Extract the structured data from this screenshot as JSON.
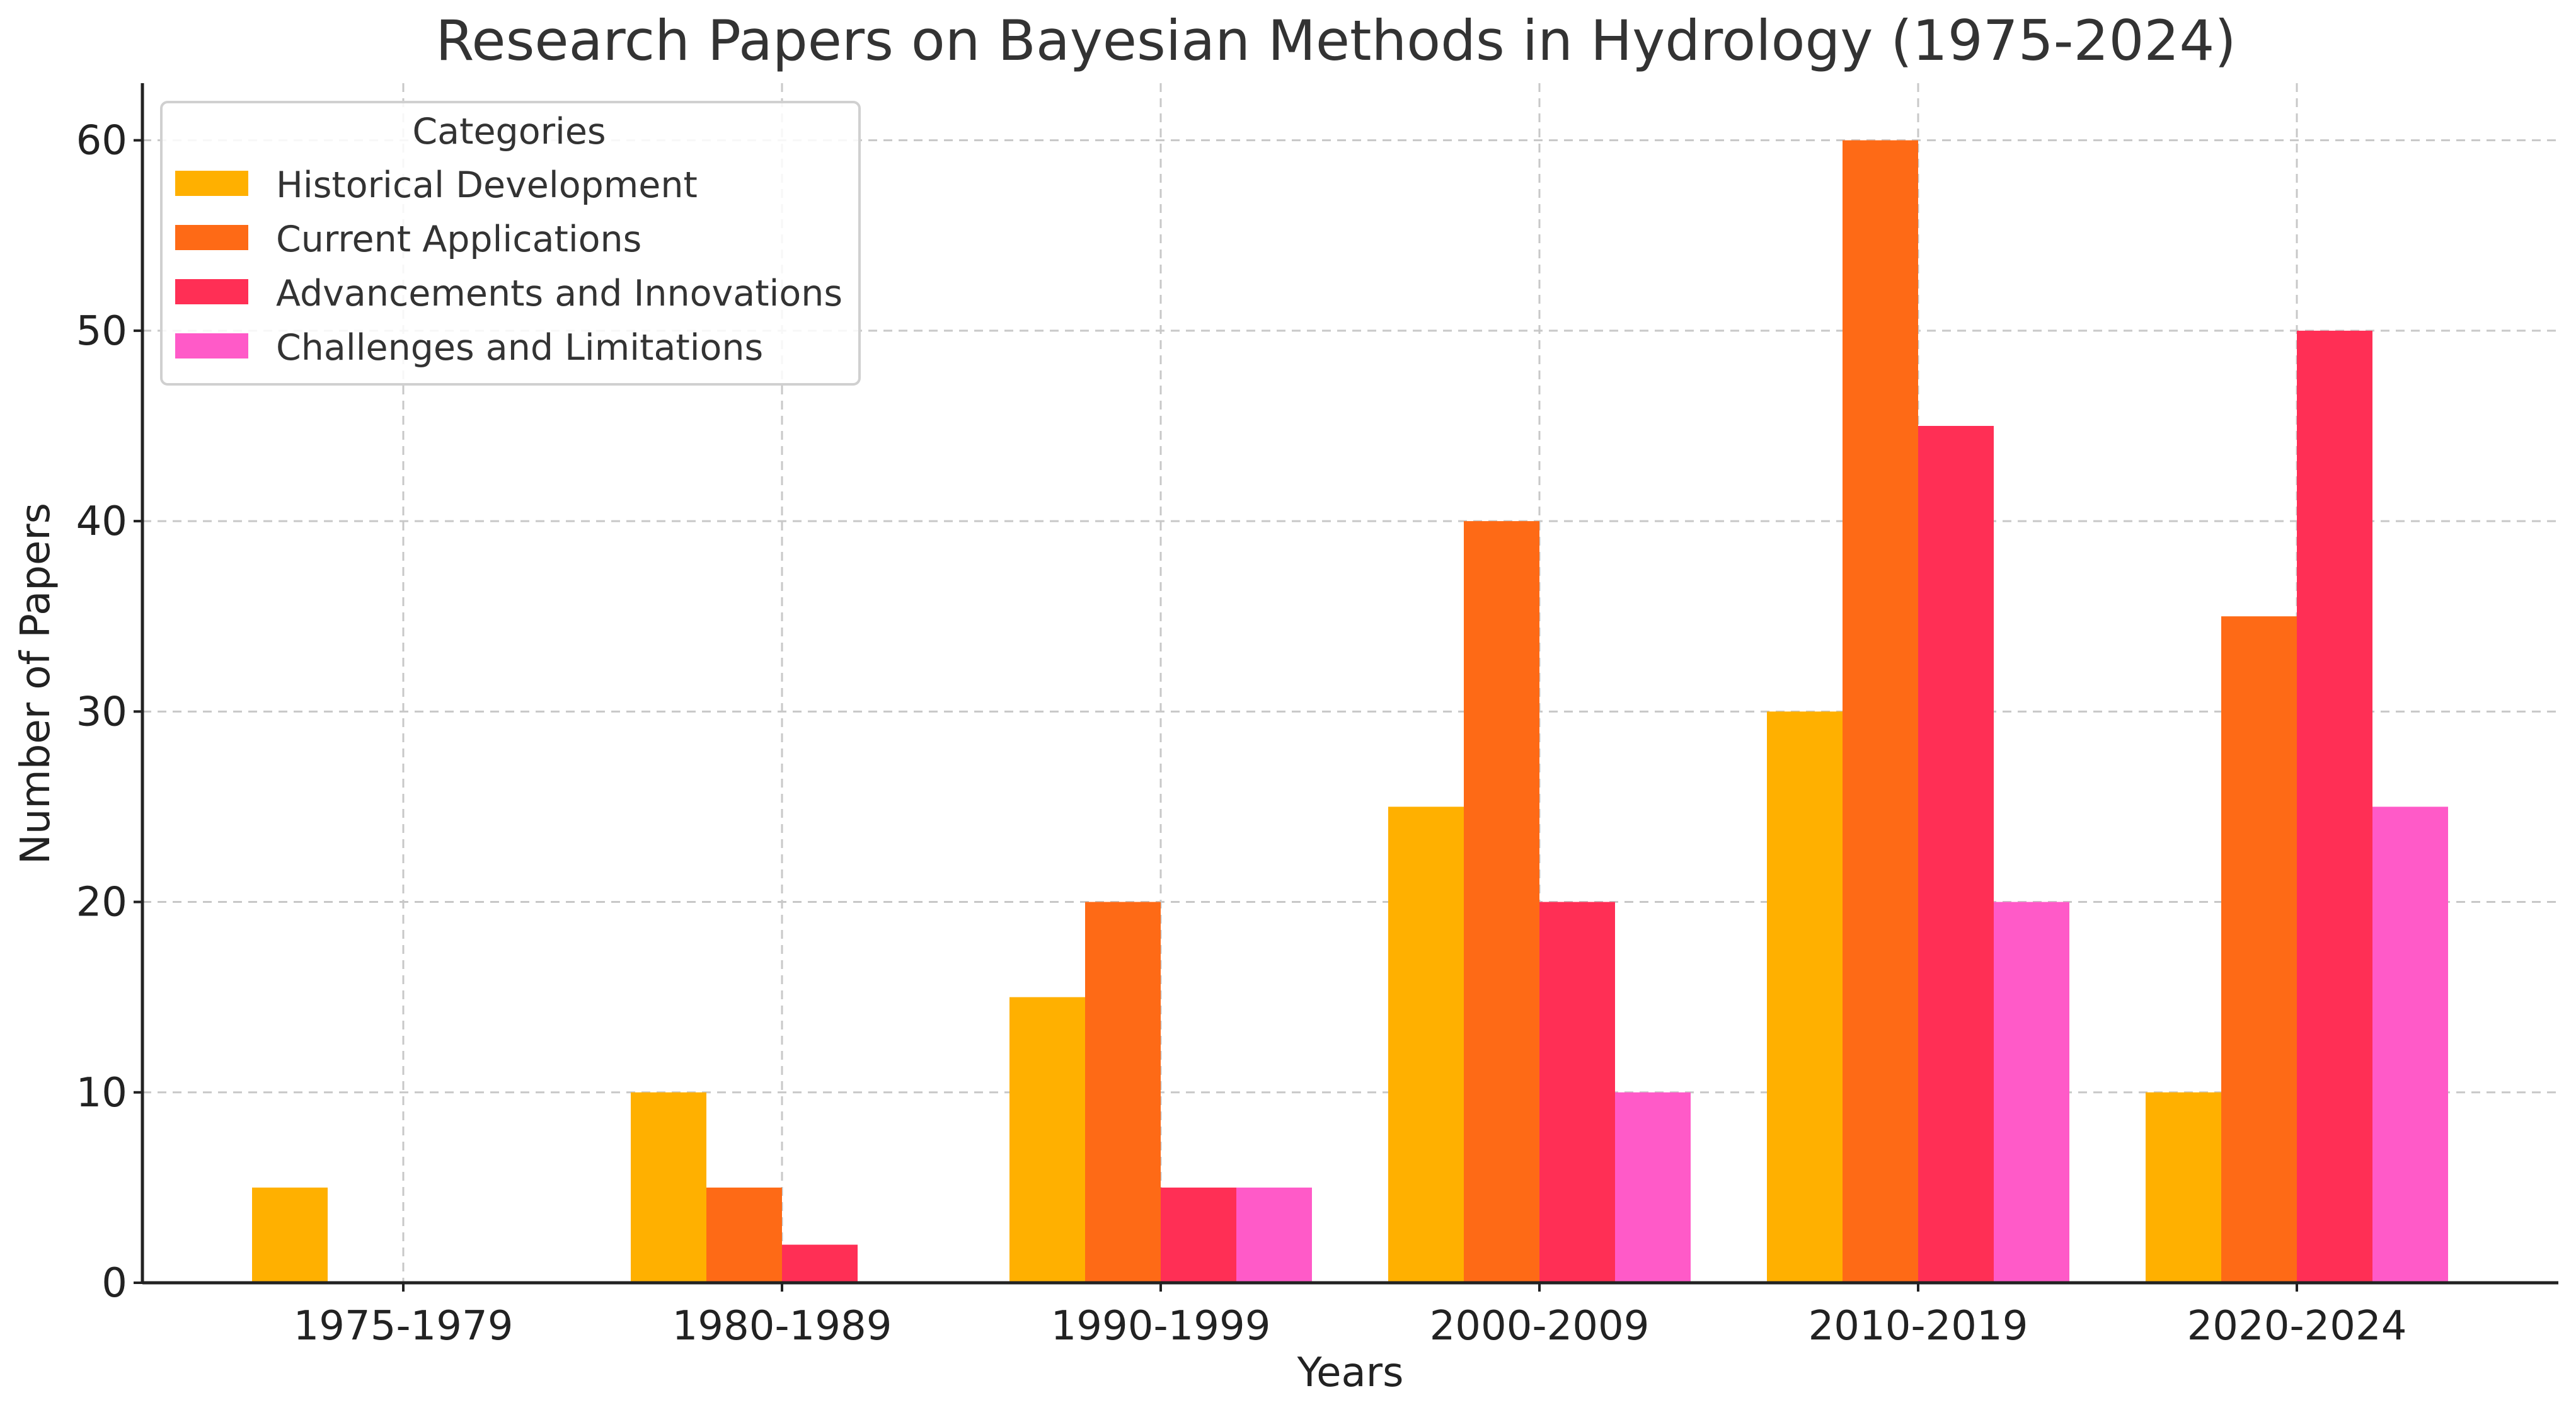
{
  "chart_data": {
    "type": "bar",
    "title": "Research Papers on Bayesian Methods in Hydrology (1975-2024)",
    "xlabel": "Years",
    "ylabel": "Number of Papers",
    "categories": [
      "1975-1979",
      "1980-1989",
      "1990-1999",
      "2000-2009",
      "2010-2019",
      "2020-2024"
    ],
    "series": [
      {
        "name": "Historical Development",
        "color": "#FFB000",
        "values": [
          5,
          10,
          15,
          25,
          30,
          10
        ]
      },
      {
        "name": "Current Applications",
        "color": "#FE6A16",
        "values": [
          0,
          5,
          20,
          40,
          60,
          35
        ]
      },
      {
        "name": "Advancements and Innovations",
        "color": "#FF2F55",
        "values": [
          0,
          2,
          5,
          20,
          45,
          50
        ]
      },
      {
        "name": "Challenges and Limitations",
        "color": "#FF5AC8",
        "values": [
          0,
          0,
          5,
          10,
          20,
          25
        ]
      }
    ],
    "ylim": [
      0,
      63
    ],
    "yticks": [
      0,
      10,
      20,
      30,
      40,
      50,
      60
    ],
    "grid": true,
    "legend": {
      "title": "Categories",
      "placement": "top-left"
    }
  }
}
